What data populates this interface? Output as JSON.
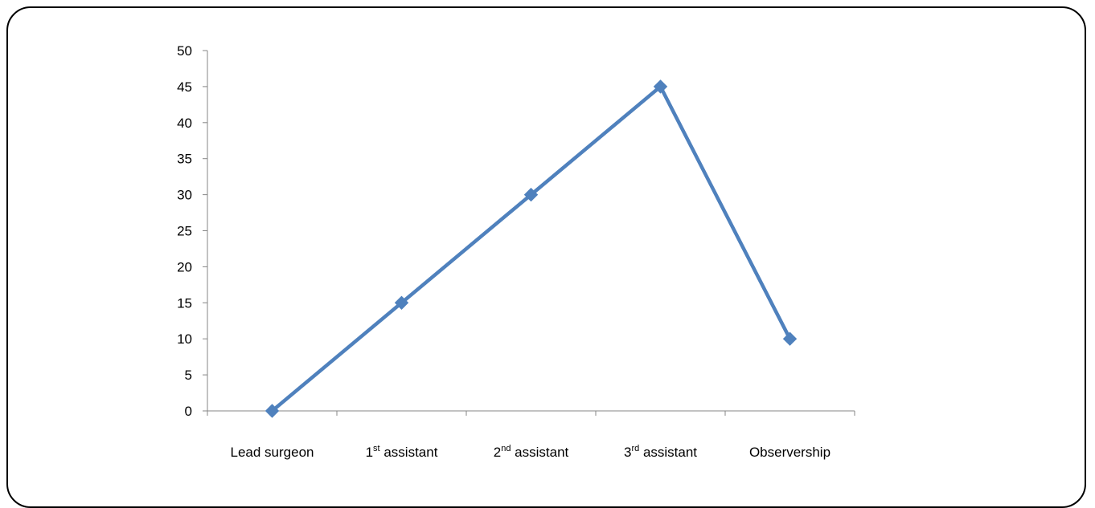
{
  "chart_data": {
    "type": "line",
    "title": "",
    "xlabel": "",
    "ylabel": "",
    "categories": [
      {
        "main": "Lead surgeon",
        "sup": "",
        "rest": ""
      },
      {
        "main": "1",
        "sup": "st",
        "rest": " assistant"
      },
      {
        "main": "2",
        "sup": "nd",
        "rest": " assistant"
      },
      {
        "main": "3",
        "sup": "rd",
        "rest": " assistant"
      },
      {
        "main": "Observership",
        "sup": "",
        "rest": ""
      }
    ],
    "values": [
      0,
      15,
      30,
      45,
      10
    ],
    "ylim": [
      0,
      50
    ],
    "yticks": [
      "0",
      "5",
      "10",
      "15",
      "20",
      "25",
      "30",
      "35",
      "40",
      "45",
      "50"
    ],
    "grid": false,
    "legend": "none",
    "series_color": "#4F81BD",
    "axis_color": "#868686"
  }
}
